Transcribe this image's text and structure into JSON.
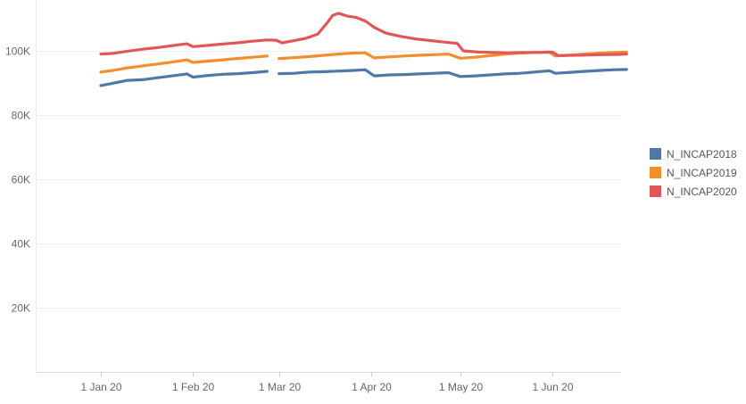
{
  "chart_data": {
    "type": "line",
    "title": "",
    "xlabel": "",
    "ylabel": "",
    "x_range": [
      "2020-01-01",
      "2020-06-26"
    ],
    "ylim": [
      0,
      110000
    ],
    "y_ticks": [
      {
        "value": 20000,
        "label": "20K"
      },
      {
        "value": 40000,
        "label": "40K"
      },
      {
        "value": 60000,
        "label": "60K"
      },
      {
        "value": 80000,
        "label": "80K"
      },
      {
        "value": 100000,
        "label": "100K"
      }
    ],
    "x_ticks": [
      {
        "date": "2020-01-01",
        "label": "1 Jan 20"
      },
      {
        "date": "2020-02-01",
        "label": "1 Feb 20"
      },
      {
        "date": "2020-03-01",
        "label": "1 Mar 20"
      },
      {
        "date": "2020-04-01",
        "label": "1 Apr 20"
      },
      {
        "date": "2020-05-01",
        "label": "1 May 20"
      },
      {
        "date": "2020-06-01",
        "label": "1 Jun 20"
      }
    ],
    "grid": "horizontal",
    "legend_position": "right",
    "series": [
      {
        "name": "N_INCAP2018",
        "color": "#4E79A7",
        "points": [
          [
            "2020-01-01",
            89200
          ],
          [
            "2020-01-05",
            89900
          ],
          [
            "2020-01-10",
            90800
          ],
          [
            "2020-01-15",
            91000
          ],
          [
            "2020-01-20",
            91600
          ],
          [
            "2020-01-25",
            92200
          ],
          [
            "2020-01-30",
            92800
          ],
          [
            "2020-02-01",
            91800
          ],
          [
            "2020-02-06",
            92300
          ],
          [
            "2020-02-11",
            92700
          ],
          [
            "2020-02-16",
            92900
          ],
          [
            "2020-02-21",
            93200
          ],
          [
            "2020-02-26",
            93600
          ],
          null,
          [
            "2020-03-01",
            92900
          ],
          [
            "2020-03-06",
            93000
          ],
          [
            "2020-03-11",
            93400
          ],
          [
            "2020-03-16",
            93500
          ],
          [
            "2020-03-21",
            93700
          ],
          [
            "2020-03-26",
            93900
          ],
          [
            "2020-03-30",
            94100
          ],
          [
            "2020-04-02",
            92200
          ],
          [
            "2020-04-07",
            92500
          ],
          [
            "2020-04-12",
            92600
          ],
          [
            "2020-04-17",
            92800
          ],
          [
            "2020-04-22",
            93000
          ],
          [
            "2020-04-27",
            93200
          ],
          [
            "2020-05-01",
            92000
          ],
          [
            "2020-05-06",
            92200
          ],
          [
            "2020-05-11",
            92500
          ],
          [
            "2020-05-16",
            92800
          ],
          [
            "2020-05-21",
            93000
          ],
          [
            "2020-05-26",
            93400
          ],
          [
            "2020-05-31",
            93800
          ],
          [
            "2020-06-02",
            93000
          ],
          [
            "2020-06-07",
            93300
          ],
          [
            "2020-06-12",
            93600
          ],
          [
            "2020-06-17",
            93900
          ],
          [
            "2020-06-22",
            94100
          ],
          [
            "2020-06-26",
            94200
          ]
        ]
      },
      {
        "name": "N_INCAP2019",
        "color": "#F28E2B",
        "points": [
          [
            "2020-01-01",
            93400
          ],
          [
            "2020-01-05",
            93900
          ],
          [
            "2020-01-10",
            94700
          ],
          [
            "2020-01-15",
            95300
          ],
          [
            "2020-01-20",
            95900
          ],
          [
            "2020-01-25",
            96500
          ],
          [
            "2020-01-30",
            97200
          ],
          [
            "2020-02-01",
            96400
          ],
          [
            "2020-02-06",
            96800
          ],
          [
            "2020-02-11",
            97200
          ],
          [
            "2020-02-16",
            97600
          ],
          [
            "2020-02-21",
            98000
          ],
          [
            "2020-02-26",
            98400
          ],
          null,
          [
            "2020-03-01",
            97600
          ],
          [
            "2020-03-06",
            97900
          ],
          [
            "2020-03-11",
            98200
          ],
          [
            "2020-03-16",
            98600
          ],
          [
            "2020-03-21",
            99000
          ],
          [
            "2020-03-26",
            99300
          ],
          [
            "2020-03-30",
            99400
          ],
          [
            "2020-04-02",
            97800
          ],
          [
            "2020-04-07",
            98100
          ],
          [
            "2020-04-12",
            98400
          ],
          [
            "2020-04-17",
            98600
          ],
          [
            "2020-04-22",
            98800
          ],
          [
            "2020-04-27",
            99000
          ],
          [
            "2020-05-01",
            97700
          ],
          [
            "2020-05-06",
            98000
          ],
          [
            "2020-05-11",
            98500
          ],
          [
            "2020-05-16",
            99000
          ],
          [
            "2020-05-21",
            99300
          ],
          [
            "2020-05-26",
            99500
          ],
          [
            "2020-05-31",
            99600
          ],
          [
            "2020-06-02",
            98400
          ],
          [
            "2020-06-07",
            98700
          ],
          [
            "2020-06-12",
            99000
          ],
          [
            "2020-06-17",
            99300
          ],
          [
            "2020-06-22",
            99500
          ],
          [
            "2020-06-26",
            99600
          ]
        ]
      },
      {
        "name": "N_INCAP2020",
        "color": "#E15759",
        "points": [
          [
            "2020-01-01",
            99000
          ],
          [
            "2020-01-05",
            99200
          ],
          [
            "2020-01-10",
            99900
          ],
          [
            "2020-01-15",
            100500
          ],
          [
            "2020-01-20",
            101000
          ],
          [
            "2020-01-25",
            101600
          ],
          [
            "2020-01-30",
            102200
          ],
          [
            "2020-02-01",
            101300
          ],
          [
            "2020-02-06",
            101700
          ],
          [
            "2020-02-11",
            102100
          ],
          [
            "2020-02-16",
            102500
          ],
          [
            "2020-02-21",
            103000
          ],
          [
            "2020-02-26",
            103400
          ],
          [
            "2020-02-29",
            103300
          ],
          [
            "2020-03-02",
            102500
          ],
          [
            "2020-03-05",
            103000
          ],
          [
            "2020-03-10",
            103900
          ],
          [
            "2020-03-14",
            105200
          ],
          [
            "2020-03-17",
            108500
          ],
          [
            "2020-03-19",
            111000
          ],
          [
            "2020-03-21",
            111700
          ],
          [
            "2020-03-24",
            110800
          ],
          [
            "2020-03-27",
            110400
          ],
          [
            "2020-03-30",
            109300
          ],
          [
            "2020-04-02",
            107300
          ],
          [
            "2020-04-06",
            105500
          ],
          [
            "2020-04-11",
            104500
          ],
          [
            "2020-04-16",
            103700
          ],
          [
            "2020-04-21",
            103200
          ],
          [
            "2020-04-26",
            102700
          ],
          [
            "2020-04-30",
            102300
          ],
          [
            "2020-05-02",
            100000
          ],
          [
            "2020-05-07",
            99600
          ],
          [
            "2020-05-12",
            99500
          ],
          [
            "2020-05-17",
            99400
          ],
          [
            "2020-05-22",
            99500
          ],
          [
            "2020-05-27",
            99500
          ],
          [
            "2020-06-01",
            99600
          ],
          [
            "2020-06-03",
            98500
          ],
          [
            "2020-06-08",
            98600
          ],
          [
            "2020-06-13",
            98700
          ],
          [
            "2020-06-18",
            98800
          ],
          [
            "2020-06-23",
            98900
          ],
          [
            "2020-06-26",
            99000
          ]
        ]
      }
    ]
  }
}
